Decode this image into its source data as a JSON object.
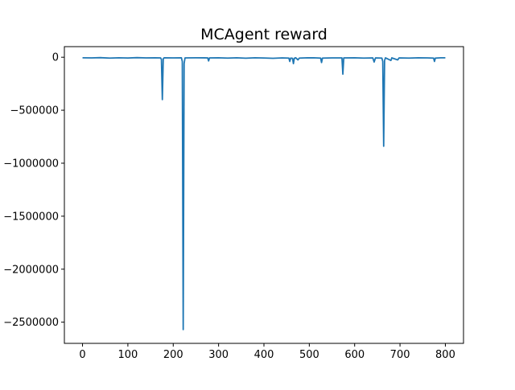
{
  "chart_data": {
    "type": "line",
    "title": "MCAgent reward",
    "xlabel": "",
    "ylabel": "",
    "xlim": [
      -40,
      840
    ],
    "ylim": [
      -2700000,
      100000
    ],
    "grid": false,
    "legend": "none",
    "x_ticks": [
      0,
      100,
      200,
      300,
      400,
      500,
      600,
      700,
      800
    ],
    "x_tick_labels": [
      "0",
      "100",
      "200",
      "300",
      "400",
      "500",
      "600",
      "700",
      "800"
    ],
    "y_ticks": [
      0,
      -500000,
      -1000000,
      -1500000,
      -2000000,
      -2500000
    ],
    "y_tick_labels": [
      "0",
      "−500000",
      "−1000000",
      "−1500000",
      "−2000000",
      "−2500000"
    ],
    "series": [
      {
        "name": "",
        "color": "#1f77b4",
        "points": [
          [
            0,
            -5000
          ],
          [
            20,
            -6000
          ],
          [
            40,
            -4000
          ],
          [
            60,
            -8000
          ],
          [
            80,
            -5000
          ],
          [
            100,
            -7000
          ],
          [
            120,
            -4000
          ],
          [
            140,
            -6000
          ],
          [
            160,
            -5000
          ],
          [
            172,
            -6000
          ],
          [
            174,
            -20000
          ],
          [
            176,
            -400000
          ],
          [
            178,
            -15000
          ],
          [
            180,
            -5000
          ],
          [
            200,
            -6000
          ],
          [
            218,
            -5000
          ],
          [
            220,
            -40000
          ],
          [
            222,
            -2570000
          ],
          [
            224,
            -60000
          ],
          [
            226,
            -6000
          ],
          [
            250,
            -5000
          ],
          [
            276,
            -6000
          ],
          [
            278,
            -35000
          ],
          [
            280,
            -6000
          ],
          [
            300,
            -5000
          ],
          [
            320,
            -8000
          ],
          [
            340,
            -5000
          ],
          [
            360,
            -9000
          ],
          [
            380,
            -5000
          ],
          [
            400,
            -7000
          ],
          [
            420,
            -10000
          ],
          [
            440,
            -6000
          ],
          [
            455,
            -8000
          ],
          [
            457,
            -40000
          ],
          [
            459,
            -8000
          ],
          [
            463,
            -10000
          ],
          [
            465,
            -60000
          ],
          [
            467,
            -10000
          ],
          [
            470,
            -5000
          ],
          [
            475,
            -25000
          ],
          [
            478,
            -8000
          ],
          [
            490,
            -6000
          ],
          [
            510,
            -5000
          ],
          [
            525,
            -8000
          ],
          [
            527,
            -50000
          ],
          [
            529,
            -8000
          ],
          [
            550,
            -6000
          ],
          [
            572,
            -6000
          ],
          [
            574,
            -160000
          ],
          [
            576,
            -6000
          ],
          [
            600,
            -5000
          ],
          [
            620,
            -8000
          ],
          [
            640,
            -6000
          ],
          [
            643,
            -45000
          ],
          [
            646,
            -6000
          ],
          [
            660,
            -8000
          ],
          [
            662,
            -40000
          ],
          [
            664,
            -840000
          ],
          [
            666,
            -30000
          ],
          [
            668,
            -6000
          ],
          [
            680,
            -30000
          ],
          [
            682,
            -6000
          ],
          [
            695,
            -25000
          ],
          [
            698,
            -6000
          ],
          [
            720,
            -8000
          ],
          [
            740,
            -5000
          ],
          [
            760,
            -6000
          ],
          [
            774,
            -8000
          ],
          [
            776,
            -40000
          ],
          [
            778,
            -8000
          ],
          [
            790,
            -5000
          ],
          [
            800,
            -5000
          ]
        ]
      }
    ]
  }
}
